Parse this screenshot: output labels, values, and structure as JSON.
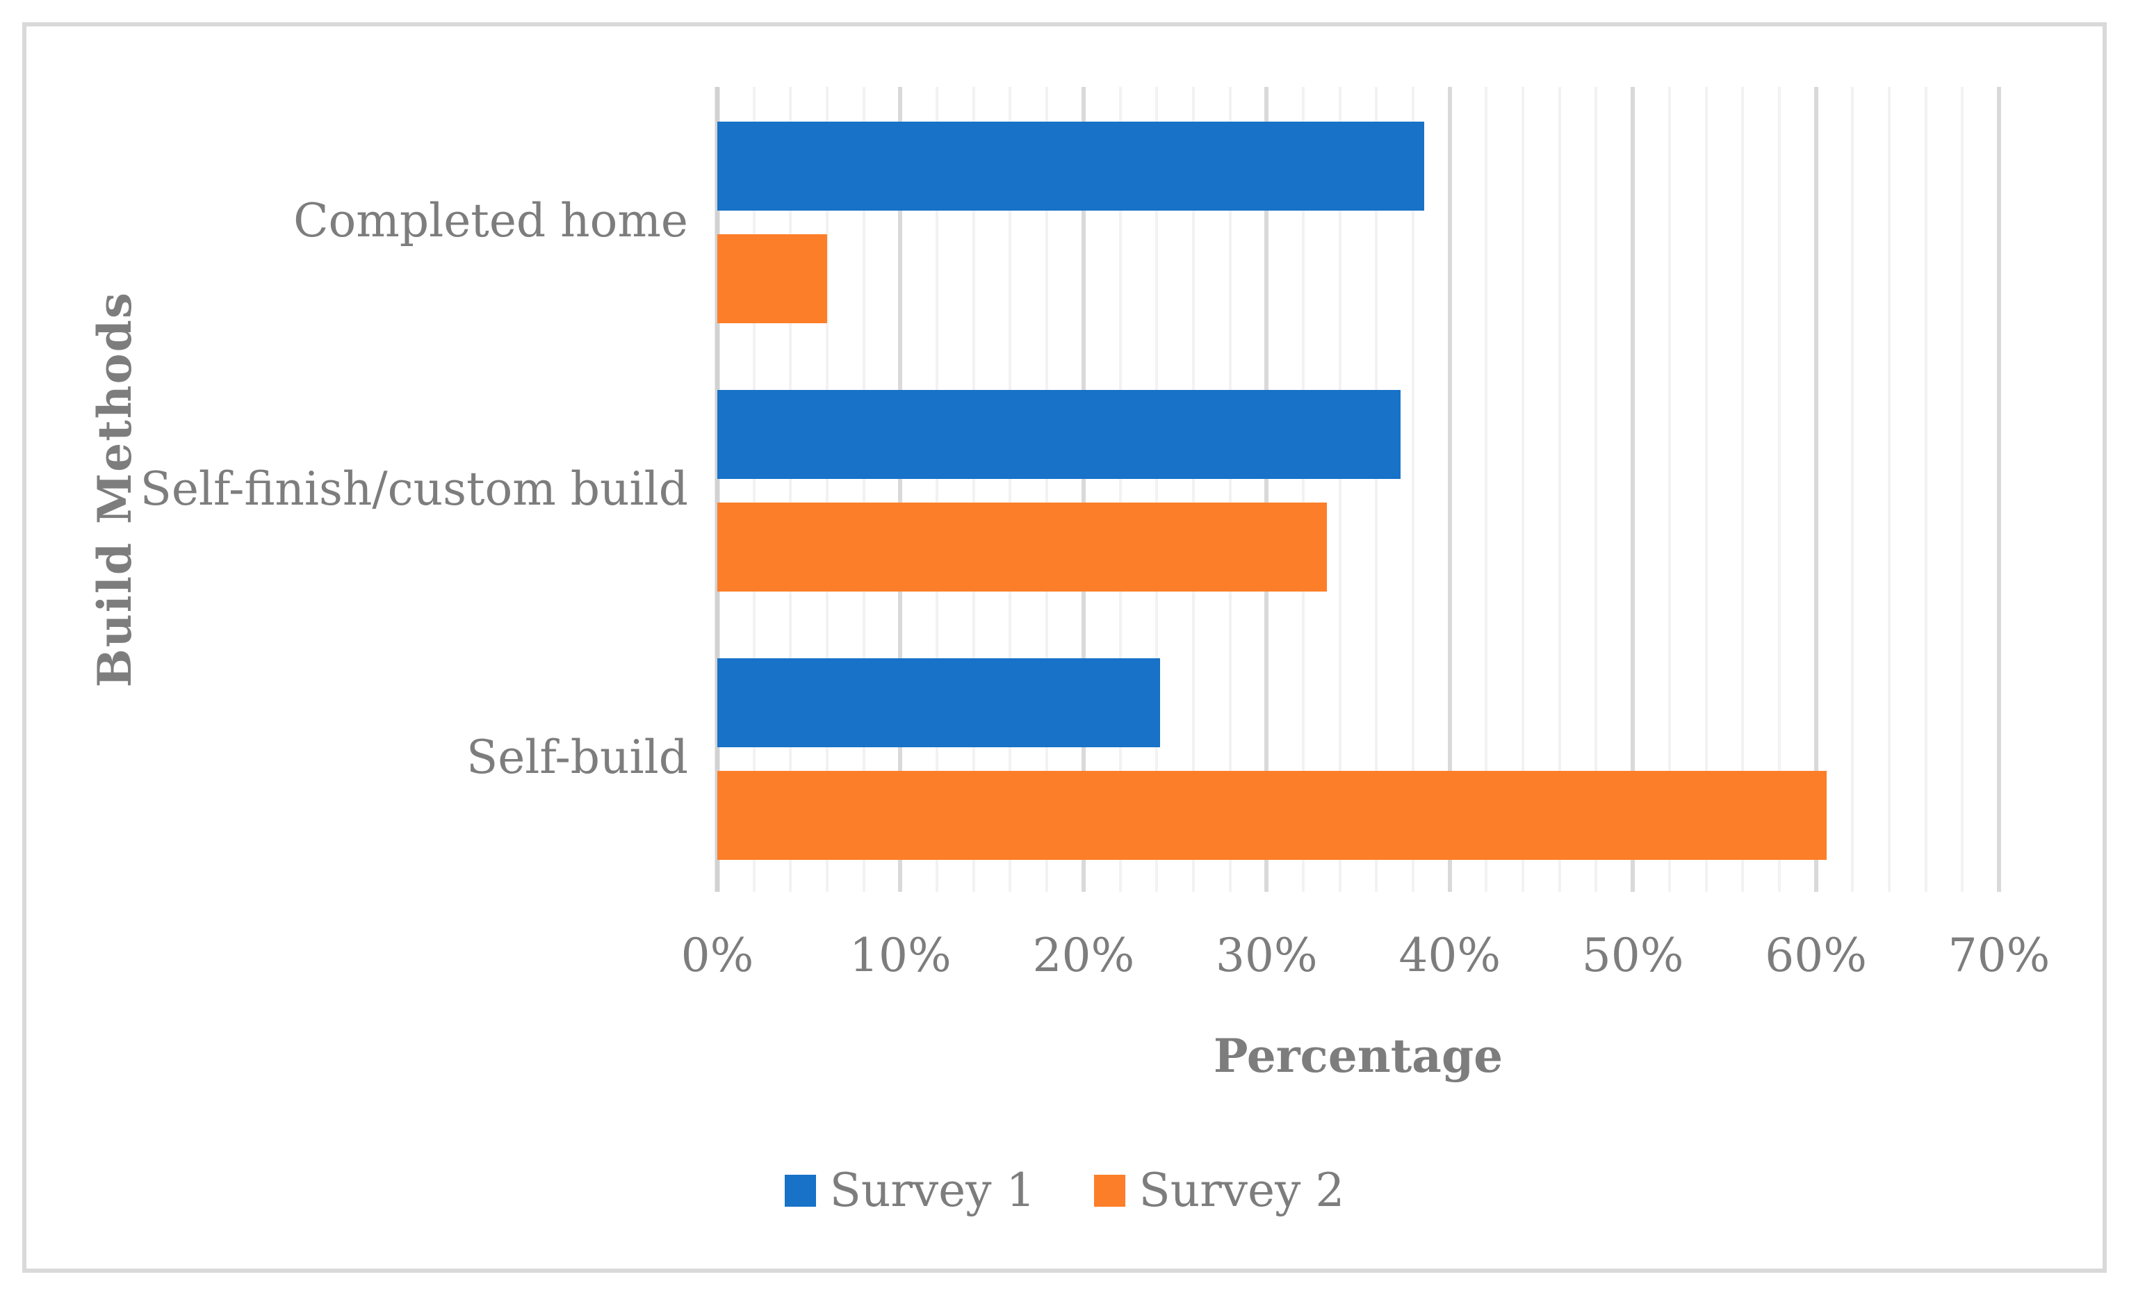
{
  "chart_data": {
    "type": "bar",
    "orientation": "horizontal",
    "title": "",
    "categories": [
      "Completed home",
      "Self-finish/custom build",
      "Self-build"
    ],
    "series": [
      {
        "name": "Survey 1",
        "color": "#1772c8",
        "values": [
          38.6,
          37.3,
          24.2
        ]
      },
      {
        "name": "Survey 2",
        "color": "#fd7e28",
        "values": [
          6.0,
          33.3,
          60.6
        ]
      }
    ],
    "xlabel": "Percentage",
    "ylabel": "Build Methods",
    "xlim": [
      0,
      70
    ],
    "x_tick_labels": [
      "0%",
      "10%",
      "20%",
      "30%",
      "40%",
      "50%",
      "60%",
      "70%"
    ],
    "x_major_step": 10,
    "x_minor_step": 2,
    "grid": "vertical minor every 2%, major every 10%",
    "legend_position": "bottom"
  },
  "colors": {
    "background": "#ffffff",
    "frame_border": "#d9d9d9",
    "major_gridline": "#d9d9d9",
    "minor_gridline": "#f2f2f2",
    "axis_line": "#d2d2d2",
    "text": "#7d7d7d"
  }
}
